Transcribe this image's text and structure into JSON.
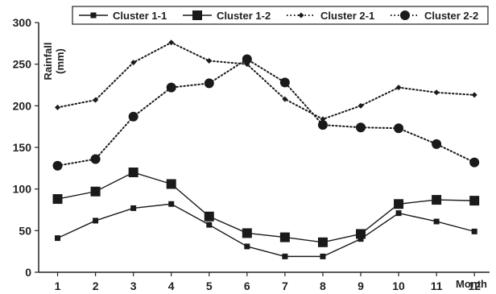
{
  "chart_data": {
    "type": "line",
    "title": "",
    "xlabel": "Month",
    "ylabel": "Rainfall (mm)",
    "x": [
      1,
      2,
      3,
      4,
      5,
      6,
      7,
      8,
      9,
      10,
      11,
      12
    ],
    "ylim": [
      0,
      300
    ],
    "yticks": [
      0,
      50,
      100,
      150,
      200,
      250,
      300
    ],
    "grid": false,
    "legend_position": "top",
    "series": [
      {
        "name": "Cluster 1-1",
        "line": "solid",
        "marker": "square",
        "marker_size": "small",
        "color": "#1a1a1a",
        "values": [
          41,
          62,
          77,
          82,
          57,
          31,
          19,
          19,
          40,
          71,
          61,
          49
        ]
      },
      {
        "name": "Cluster 1-2",
        "line": "solid",
        "marker": "square",
        "marker_size": "large",
        "color": "#1a1a1a",
        "values": [
          88,
          97,
          120,
          106,
          67,
          47,
          42,
          36,
          46,
          82,
          87,
          86
        ]
      },
      {
        "name": "Cluster 2-1",
        "line": "dotted",
        "marker": "diamond",
        "marker_size": "small",
        "color": "#1a1a1a",
        "values": [
          198,
          207,
          252,
          276,
          254,
          250,
          208,
          184,
          200,
          222,
          216,
          213
        ]
      },
      {
        "name": "Cluster 2-2",
        "line": "dotted",
        "marker": "circle",
        "marker_size": "large",
        "color": "#1a1a1a",
        "values": [
          128,
          136,
          187,
          222,
          227,
          256,
          228,
          177,
          174,
          173,
          154,
          132
        ]
      }
    ]
  }
}
